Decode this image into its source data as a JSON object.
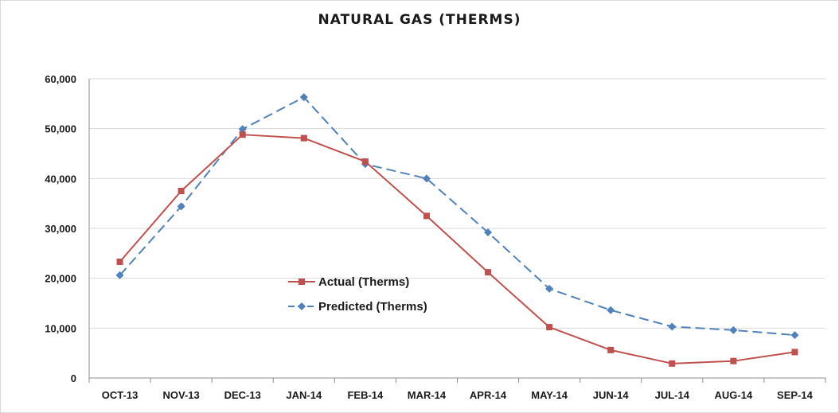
{
  "chart_data": {
    "type": "line",
    "title": "NATURAL GAS (THERMS)",
    "xlabel": "",
    "ylabel": "",
    "categories": [
      "OCT-13",
      "NOV-13",
      "DEC-13",
      "JAN-14",
      "FEB-14",
      "MAR-14",
      "APR-14",
      "MAY-14",
      "JUN-14",
      "JUL-14",
      "AUG-14",
      "SEP-14"
    ],
    "ylim": [
      0,
      60000
    ],
    "yticks": [
      0,
      10000,
      20000,
      30000,
      40000,
      50000,
      60000
    ],
    "ytick_labels": [
      "0",
      "10,000",
      "20,000",
      "30,000",
      "40,000",
      "50,000",
      "60,000"
    ],
    "grid": "horizontal",
    "legend_position": "center-left",
    "series": [
      {
        "name": "Actual (Therms)",
        "color": "#c0504d",
        "marker": "square",
        "line_style": "solid",
        "values": [
          23300,
          37500,
          48800,
          48100,
          43400,
          32500,
          21200,
          10200,
          5600,
          2900,
          3400,
          5200
        ]
      },
      {
        "name": "Predicted (Therms)",
        "color": "#4f81bd",
        "marker": "diamond",
        "line_style": "dashed",
        "values": [
          20600,
          34400,
          49900,
          56300,
          42900,
          40000,
          29200,
          17900,
          13600,
          10300,
          9600,
          8600
        ]
      }
    ]
  }
}
